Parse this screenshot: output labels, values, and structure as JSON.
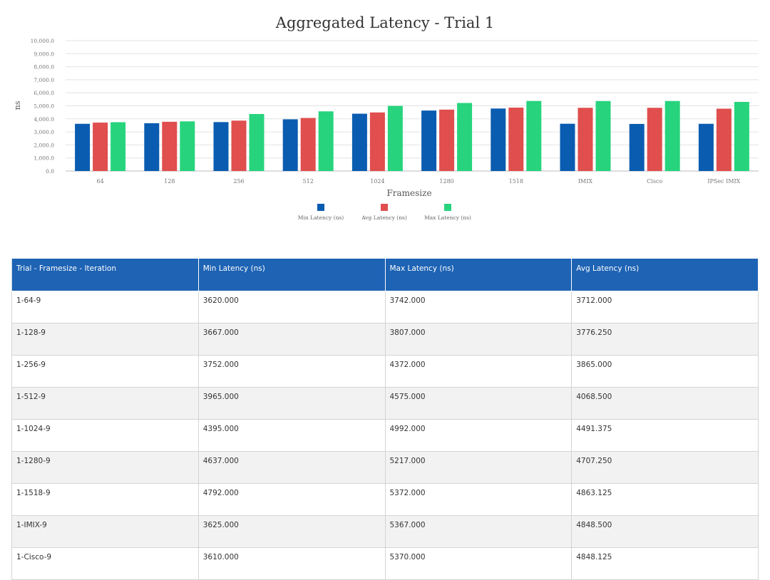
{
  "chart_data": {
    "type": "bar",
    "title": "Aggregated Latency - Trial 1",
    "xlabel": "Framesize",
    "ylabel": "ns",
    "ylim": [
      0,
      10000
    ],
    "yticks": [
      "0.0",
      "1,000.0",
      "2,000.0",
      "3,000.0",
      "4,000.0",
      "5,000.0",
      "6,000.0",
      "7,000.0",
      "8,000.0",
      "9,000.0",
      "10,000.0"
    ],
    "categories": [
      "64",
      "128",
      "256",
      "512",
      "1024",
      "1280",
      "1518",
      "IMIX",
      "Cisco",
      "IPSec IMIX"
    ],
    "series": [
      {
        "name": "Min Latency (ns)",
        "color": "#0a5cb0",
        "values": [
          3620,
          3667,
          3752,
          3965,
          4395,
          4637,
          4792,
          3625,
          3610,
          3620
        ]
      },
      {
        "name": "Avg Latency (ns)",
        "color": "#e04e4e",
        "values": [
          3712,
          3776.25,
          3865,
          4068.5,
          4491.375,
          4707.25,
          4863.125,
          4848.5,
          4848.125,
          4780
        ]
      },
      {
        "name": "Max Latency (ns)",
        "color": "#27d47d",
        "values": [
          3742,
          3807,
          4372,
          4575,
          4992,
          5217,
          5372,
          5367,
          5370,
          5300
        ]
      }
    ],
    "grid": true,
    "legend_position": "bottom"
  },
  "table": {
    "headers": [
      "Trial - Framesize - Iteration",
      "Min Latency (ns)",
      "Max Latency (ns)",
      "Avg Latency (ns)"
    ],
    "rows": [
      [
        "1-64-9",
        "3620.000",
        "3742.000",
        "3712.000"
      ],
      [
        "1-128-9",
        "3667.000",
        "3807.000",
        "3776.250"
      ],
      [
        "1-256-9",
        "3752.000",
        "4372.000",
        "3865.000"
      ],
      [
        "1-512-9",
        "3965.000",
        "4575.000",
        "4068.500"
      ],
      [
        "1-1024-9",
        "4395.000",
        "4992.000",
        "4491.375"
      ],
      [
        "1-1280-9",
        "4637.000",
        "5217.000",
        "4707.250"
      ],
      [
        "1-1518-9",
        "4792.000",
        "5372.000",
        "4863.125"
      ],
      [
        "1-IMIX-9",
        "3625.000",
        "5367.000",
        "4848.500"
      ],
      [
        "1-Cisco-9",
        "3610.000",
        "5370.000",
        "4848.125"
      ]
    ]
  }
}
